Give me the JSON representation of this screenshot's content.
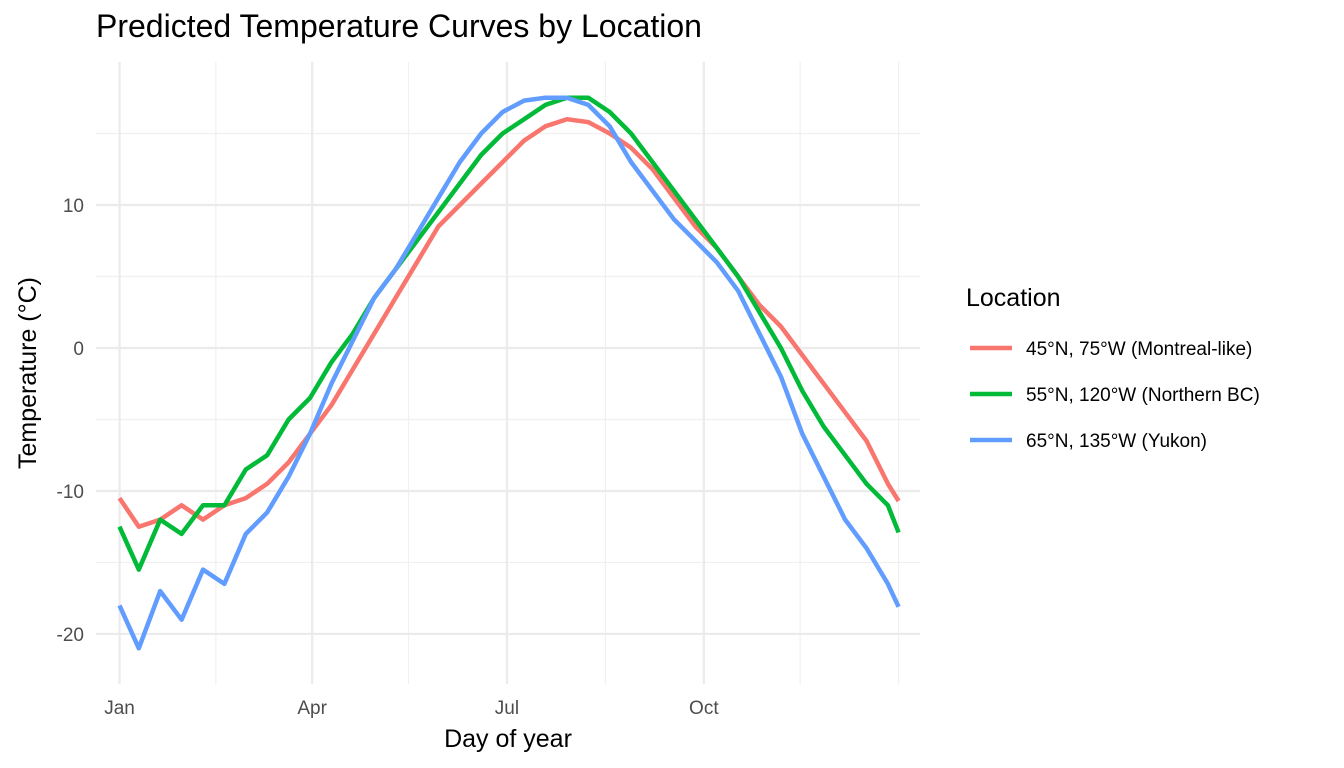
{
  "chart_data": {
    "type": "line",
    "title": "Predicted Temperature Curves by Location",
    "xlabel": "Day of year",
    "ylabel": "Temperature (°C)",
    "xlim": [
      -10,
      375
    ],
    "ylim": [
      -23.5,
      20
    ],
    "x_ticks": [
      {
        "value": 1,
        "label": "Jan"
      },
      {
        "value": 91,
        "label": "Apr"
      },
      {
        "value": 182,
        "label": "Jul"
      },
      {
        "value": 274,
        "label": "Oct"
      }
    ],
    "x_minor_ticks": [
      46,
      136,
      228,
      319,
      365
    ],
    "y_ticks": [
      {
        "value": -20,
        "label": "-20"
      },
      {
        "value": -10,
        "label": "-10"
      },
      {
        "value": 0,
        "label": "0"
      },
      {
        "value": 10,
        "label": "10"
      }
    ],
    "y_minor_ticks": [
      -15,
      -5,
      5,
      15
    ],
    "grid": true,
    "legend": {
      "title": "Location",
      "position": "right"
    },
    "series": [
      {
        "name": "45°N, 75°W (Montreal-like)",
        "color": "#F8766D",
        "x": [
          1,
          10,
          20,
          30,
          40,
          50,
          60,
          70,
          80,
          90,
          100,
          110,
          120,
          130,
          140,
          150,
          160,
          170,
          180,
          190,
          200,
          210,
          220,
          230,
          240,
          250,
          260,
          270,
          280,
          290,
          300,
          310,
          320,
          330,
          340,
          350,
          360,
          365
        ],
        "values": [
          -10.5,
          -12.5,
          -12.0,
          -11.0,
          -12.0,
          -11.0,
          -10.5,
          -9.5,
          -8.0,
          -6.0,
          -4.0,
          -1.5,
          1.0,
          3.5,
          6.0,
          8.5,
          10.0,
          11.5,
          13.0,
          14.5,
          15.5,
          16.0,
          15.8,
          15.0,
          14.0,
          12.5,
          10.5,
          8.5,
          7.0,
          5.0,
          3.0,
          1.5,
          -0.5,
          -2.5,
          -4.5,
          -6.5,
          -9.5,
          -10.7
        ]
      },
      {
        "name": "55°N, 120°W (Northern BC)",
        "color": "#00BA38",
        "x": [
          1,
          10,
          20,
          30,
          40,
          50,
          60,
          70,
          80,
          90,
          100,
          110,
          120,
          130,
          140,
          150,
          160,
          170,
          180,
          190,
          200,
          210,
          220,
          230,
          240,
          250,
          260,
          270,
          280,
          290,
          300,
          310,
          320,
          330,
          340,
          350,
          360,
          365
        ],
        "values": [
          -12.5,
          -15.5,
          -12.0,
          -13.0,
          -11.0,
          -11.0,
          -8.5,
          -7.5,
          -5.0,
          -3.5,
          -1.0,
          1.0,
          3.5,
          5.5,
          7.5,
          9.5,
          11.5,
          13.5,
          15.0,
          16.0,
          17.0,
          17.5,
          17.5,
          16.5,
          15.0,
          13.0,
          11.0,
          9.0,
          7.0,
          5.0,
          2.5,
          0.0,
          -3.0,
          -5.5,
          -7.5,
          -9.5,
          -11.0,
          -12.9
        ]
      },
      {
        "name": "65°N, 135°W (Yukon)",
        "color": "#619CFF",
        "x": [
          1,
          10,
          20,
          30,
          40,
          50,
          60,
          70,
          80,
          90,
          100,
          110,
          120,
          130,
          140,
          150,
          160,
          170,
          180,
          190,
          200,
          210,
          220,
          230,
          240,
          250,
          260,
          270,
          280,
          290,
          300,
          310,
          320,
          330,
          340,
          350,
          360,
          365
        ],
        "values": [
          -18.0,
          -21.0,
          -17.0,
          -19.0,
          -15.5,
          -16.5,
          -13.0,
          -11.5,
          -9.0,
          -6.0,
          -2.5,
          0.5,
          3.5,
          5.5,
          8.0,
          10.5,
          13.0,
          15.0,
          16.5,
          17.3,
          17.5,
          17.5,
          17.0,
          15.5,
          13.0,
          11.0,
          9.0,
          7.5,
          6.0,
          4.0,
          1.0,
          -2.0,
          -6.0,
          -9.0,
          -12.0,
          -14.0,
          -16.5,
          -18.1
        ]
      }
    ]
  }
}
